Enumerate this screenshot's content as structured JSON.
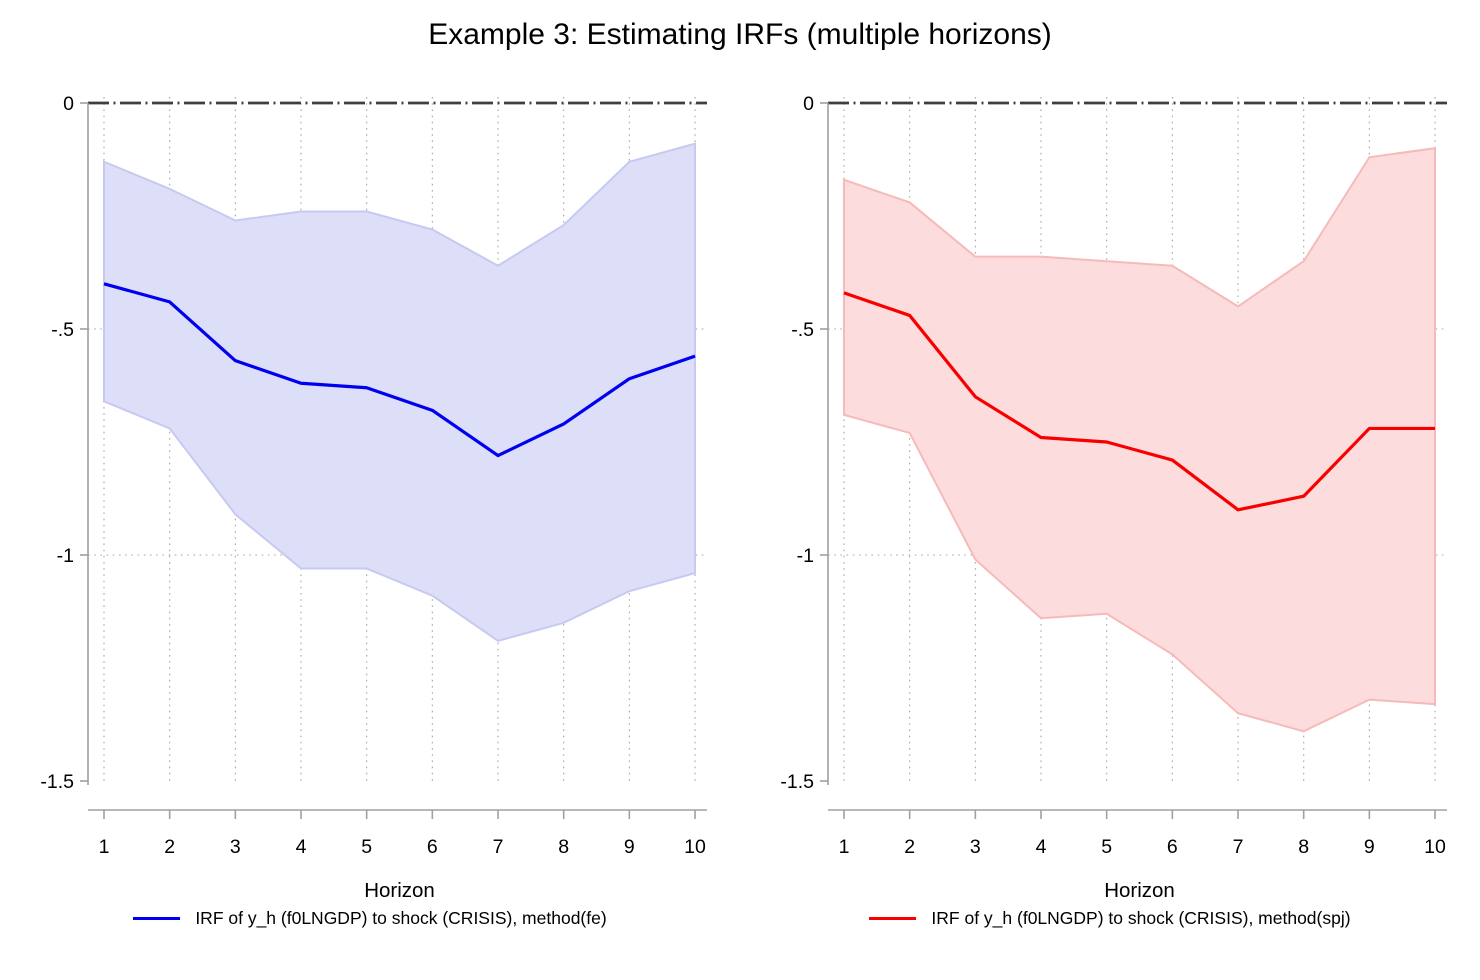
{
  "title": "Example 3: Estimating IRFs (multiple horizons)",
  "colors": {
    "background": "#ffffff",
    "zero_line": "#3f3f3f",
    "gridline": "#a6a6a6",
    "axis": "#a0a0a0",
    "text": "#000000",
    "fe_line": "#0000f0",
    "fe_band_fill": "#dddef7",
    "fe_band_edge": "#c8c9f0",
    "spj_line": "#f80000",
    "spj_band_fill": "#fcdcdc",
    "spj_band_edge": "#f6baba"
  },
  "chart_data": [
    {
      "type": "line",
      "panel": "left",
      "title": "",
      "xlabel": "Horizon",
      "ylabel": "",
      "x": [
        1,
        2,
        3,
        4,
        5,
        6,
        7,
        8,
        9,
        10
      ],
      "xtick_labels": [
        "1",
        "2",
        "3",
        "4",
        "5",
        "6",
        "7",
        "8",
        "9",
        "10"
      ],
      "ylim": [
        -1.5,
        0
      ],
      "yticks": [
        0,
        -0.5,
        -1,
        -1.5
      ],
      "ytick_labels": [
        "0",
        "-.5",
        "-1",
        "-1.5"
      ],
      "grid_y": [
        -0.5,
        -1
      ],
      "zero_reference_line": 0,
      "legend_position": "bottom-center",
      "series": [
        {
          "name": "IRF of y_h (f0LNGDP) to shock (CRISIS), method(fe)",
          "role": "irf",
          "values": [
            -0.4,
            -0.44,
            -0.57,
            -0.62,
            -0.63,
            -0.68,
            -0.78,
            -0.71,
            -0.61,
            -0.56
          ]
        },
        {
          "name": "CI upper",
          "role": "ci_upper",
          "values": [
            -0.13,
            -0.19,
            -0.26,
            -0.24,
            -0.24,
            -0.28,
            -0.36,
            -0.27,
            -0.13,
            -0.09
          ]
        },
        {
          "name": "CI lower",
          "role": "ci_lower",
          "values": [
            -0.66,
            -0.72,
            -0.91,
            -1.03,
            -1.03,
            -1.09,
            -1.19,
            -1.15,
            -1.08,
            -1.04
          ]
        }
      ],
      "line_color_key": "fe_line",
      "band_fill_key": "fe_band_fill",
      "band_edge_key": "fe_band_edge"
    },
    {
      "type": "line",
      "panel": "right",
      "title": "",
      "xlabel": "Horizon",
      "ylabel": "",
      "x": [
        1,
        2,
        3,
        4,
        5,
        6,
        7,
        8,
        9,
        10
      ],
      "xtick_labels": [
        "1",
        "2",
        "3",
        "4",
        "5",
        "6",
        "7",
        "8",
        "9",
        "10"
      ],
      "ylim": [
        -1.5,
        0
      ],
      "yticks": [
        0,
        -0.5,
        -1,
        -1.5
      ],
      "ytick_labels": [
        "0",
        "-.5",
        "-1",
        "-1.5"
      ],
      "grid_y": [
        -0.5,
        -1
      ],
      "zero_reference_line": 0,
      "legend_position": "bottom-center",
      "series": [
        {
          "name": "IRF of y_h (f0LNGDP) to shock (CRISIS), method(spj)",
          "role": "irf",
          "values": [
            -0.42,
            -0.47,
            -0.65,
            -0.74,
            -0.75,
            -0.79,
            -0.9,
            -0.87,
            -0.72,
            -0.72
          ]
        },
        {
          "name": "CI upper",
          "role": "ci_upper",
          "values": [
            -0.17,
            -0.22,
            -0.34,
            -0.34,
            -0.35,
            -0.36,
            -0.45,
            -0.35,
            -0.12,
            -0.1
          ]
        },
        {
          "name": "CI lower",
          "role": "ci_lower",
          "values": [
            -0.69,
            -0.73,
            -1.01,
            -1.14,
            -1.13,
            -1.22,
            -1.35,
            -1.39,
            -1.32,
            -1.33
          ]
        }
      ],
      "line_color_key": "spj_line",
      "band_fill_key": "spj_band_fill",
      "band_edge_key": "spj_band_edge"
    }
  ]
}
